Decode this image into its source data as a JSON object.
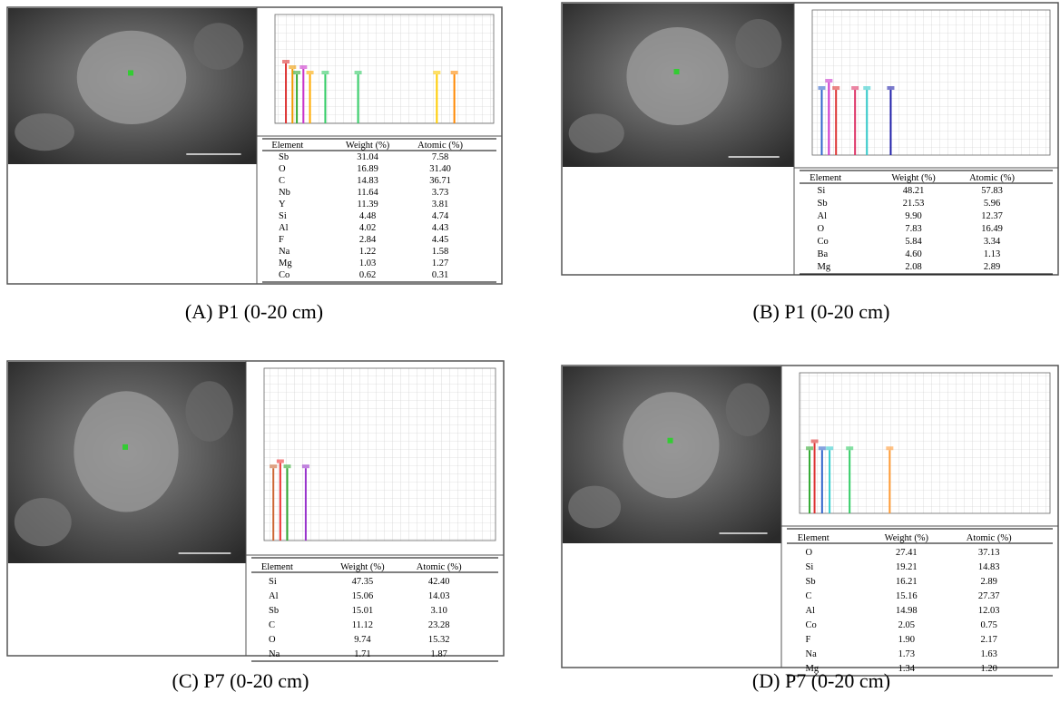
{
  "panels": [
    {
      "caption": "(A) P1 (0-20 cm)",
      "table": {
        "header": [
          "Element",
          "Weight (%)",
          "Atomic (%)"
        ],
        "rows": [
          [
            "Sb",
            "31.04",
            "7.58"
          ],
          [
            "O",
            "16.89",
            "31.40"
          ],
          [
            "C",
            "14.83",
            "36.71"
          ],
          [
            "Nb",
            "11.64",
            "3.73"
          ],
          [
            "Y",
            "11.39",
            "3.81"
          ],
          [
            "Si",
            "4.48",
            "4.74"
          ],
          [
            "Al",
            "4.02",
            "4.43"
          ],
          [
            "F",
            "2.84",
            "4.45"
          ],
          [
            "Na",
            "1.22",
            "1.58"
          ],
          [
            "Mg",
            "1.03",
            "1.27"
          ],
          [
            "Co",
            "0.62",
            "0.31"
          ]
        ]
      }
    },
    {
      "caption": "(B) P1 (0-20 cm)",
      "table": {
        "header": [
          "Element",
          "Weight (%)",
          "Atomic (%)"
        ],
        "rows": [
          [
            "Si",
            "48.21",
            "57.83"
          ],
          [
            "Sb",
            "21.53",
            "5.96"
          ],
          [
            "Al",
            "9.90",
            "12.37"
          ],
          [
            "O",
            "7.83",
            "16.49"
          ],
          [
            "Co",
            "5.84",
            "3.34"
          ],
          [
            "Ba",
            "4.60",
            "1.13"
          ],
          [
            "Mg",
            "2.08",
            "2.89"
          ]
        ]
      }
    },
    {
      "caption": "(C) P7 (0-20 cm)",
      "table": {
        "header": [
          "Element",
          "Weight (%)",
          "Atomic (%)"
        ],
        "rows": [
          [
            "Si",
            "47.35",
            "42.40"
          ],
          [
            "Al",
            "15.06",
            "14.03"
          ],
          [
            "Sb",
            "15.01",
            "3.10"
          ],
          [
            "C",
            "11.12",
            "23.28"
          ],
          [
            "O",
            "9.74",
            "15.32"
          ],
          [
            "Na",
            "1.71",
            "1.87"
          ]
        ]
      }
    },
    {
      "caption": "(D) P7 (0-20 cm)",
      "table": {
        "header": [
          "Element",
          "Weight (%)",
          "Atomic (%)"
        ],
        "rows": [
          [
            "O",
            "27.41",
            "37.13"
          ],
          [
            "Si",
            "19.21",
            "14.83"
          ],
          [
            "Sb",
            "16.21",
            "2.89"
          ],
          [
            "C",
            "15.16",
            "27.37"
          ],
          [
            "Al",
            "14.98",
            "12.03"
          ],
          [
            "Co",
            "2.05",
            "0.75"
          ],
          [
            "F",
            "1.90",
            "2.17"
          ],
          [
            "Na",
            "1.73",
            "1.63"
          ],
          [
            "Mg",
            "1.34",
            "1.20"
          ]
        ]
      }
    }
  ]
}
